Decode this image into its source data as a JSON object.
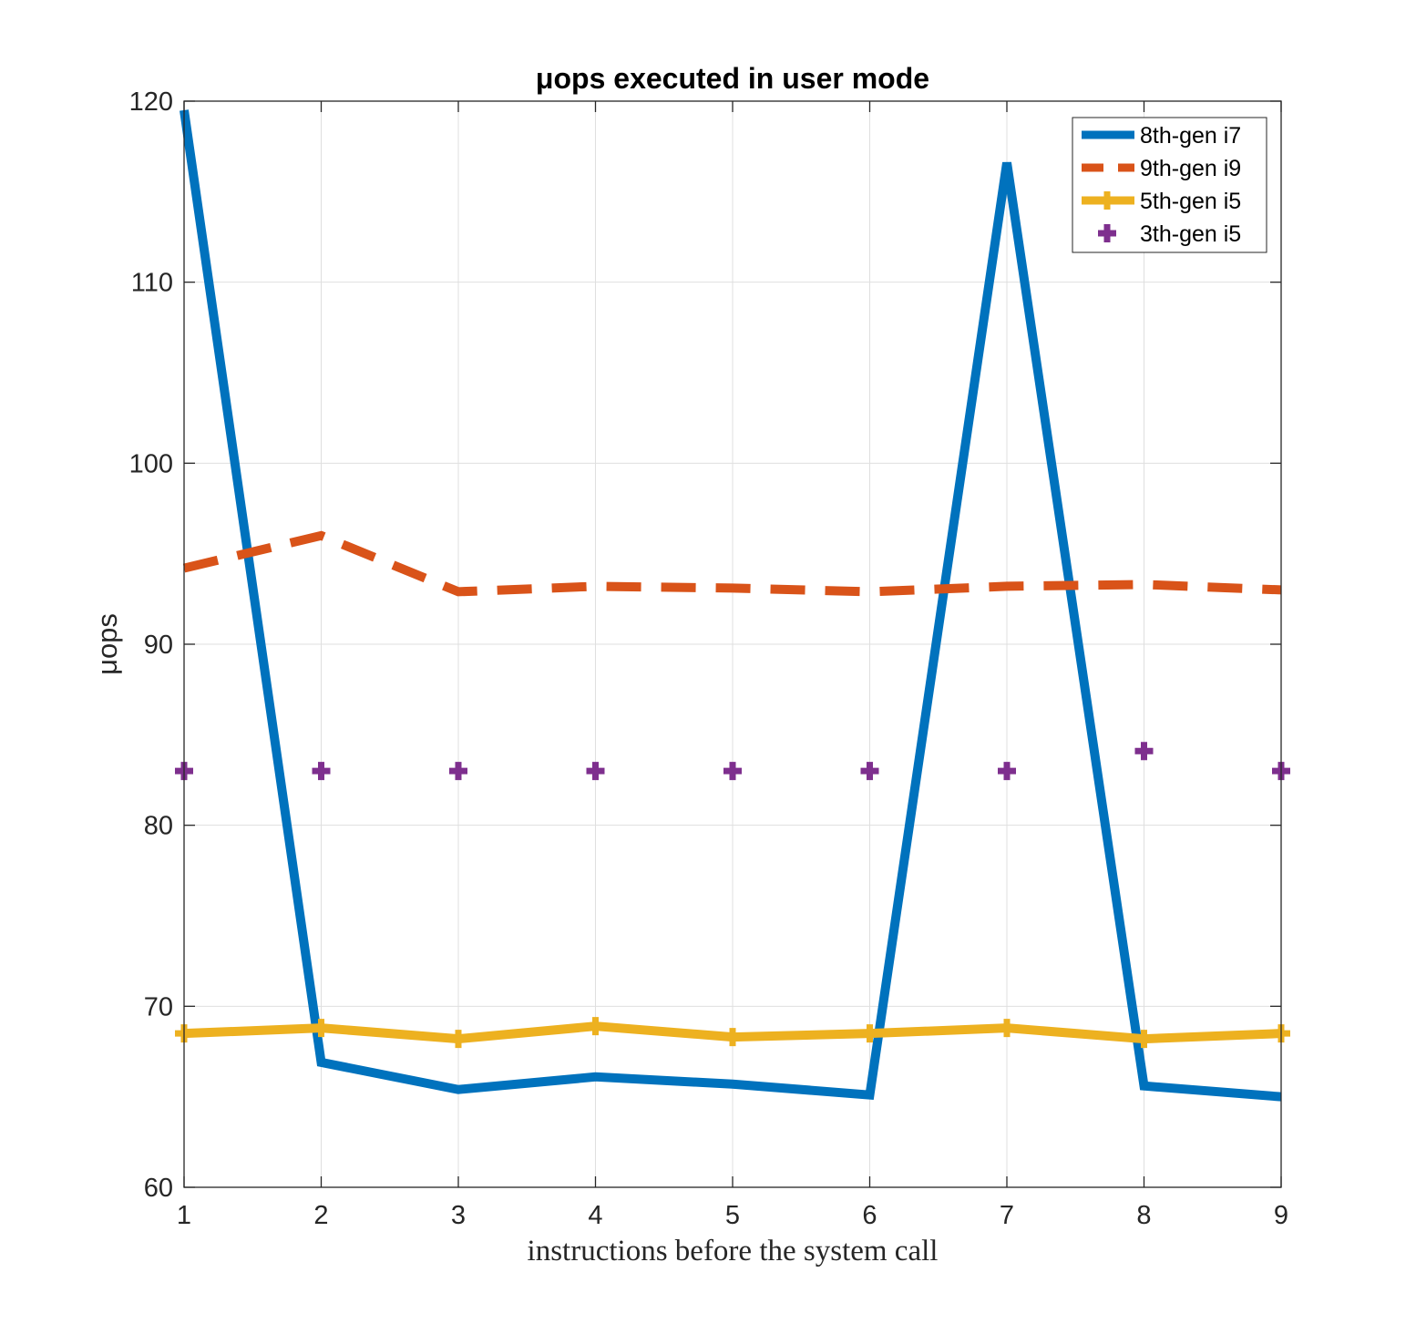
{
  "chart_data": {
    "type": "line",
    "title": "μops executed in user mode",
    "xlabel": "instructions before the system call",
    "ylabel": "μops",
    "x": [
      1,
      2,
      3,
      4,
      5,
      6,
      7,
      8,
      9
    ],
    "xlim": [
      1,
      9
    ],
    "ylim": [
      60,
      120
    ],
    "xticks": [
      1,
      2,
      3,
      4,
      5,
      6,
      7,
      8,
      9
    ],
    "yticks": [
      60,
      70,
      80,
      90,
      100,
      110,
      120
    ],
    "grid": true,
    "legend_position": "top-right",
    "series": [
      {
        "name": "8th-gen i7",
        "values": [
          119.5,
          66.9,
          65.4,
          66.1,
          65.7,
          65.1,
          116.6,
          65.6,
          65.0
        ],
        "color": "#0072BD",
        "style": "solid",
        "marker": "none"
      },
      {
        "name": "9th-gen i9",
        "values": [
          94.2,
          96.0,
          92.9,
          93.2,
          93.1,
          92.9,
          93.2,
          93.3,
          93.0
        ],
        "color": "#D95319",
        "style": "dashed",
        "marker": "none"
      },
      {
        "name": "5th-gen i5",
        "values": [
          68.5,
          68.8,
          68.2,
          68.9,
          68.3,
          68.5,
          68.8,
          68.2,
          68.5
        ],
        "color": "#EDB120",
        "style": "solid",
        "marker": "plus"
      },
      {
        "name": "3th-gen i5",
        "values": [
          83.0,
          83.0,
          83.0,
          83.0,
          83.0,
          83.0,
          83.0,
          84.1,
          83.0
        ],
        "color": "#7E2F8E",
        "style": "none",
        "marker": "plus"
      }
    ]
  }
}
